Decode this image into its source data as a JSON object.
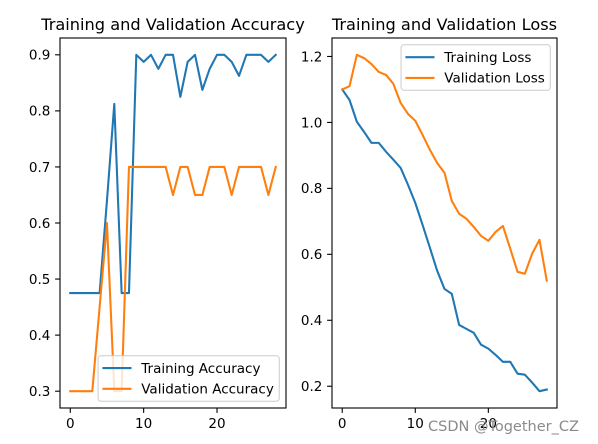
{
  "watermark": "CSDN @Together_CZ",
  "chart_data": [
    {
      "type": "line",
      "title": "Training and Validation Accuracy",
      "x": [
        0,
        1,
        2,
        3,
        4,
        5,
        6,
        7,
        8,
        9,
        10,
        11,
        12,
        13,
        14,
        15,
        16,
        17,
        18,
        19,
        20,
        21,
        22,
        23,
        24,
        25,
        26,
        27,
        28
      ],
      "xlim": [
        -1.4,
        29.4
      ],
      "ylim": [
        0.27,
        0.93
      ],
      "x_ticks": [
        "0",
        "10",
        "20"
      ],
      "y_ticks": [
        "0.3",
        "0.4",
        "0.5",
        "0.6",
        "0.7",
        "0.8",
        "0.9"
      ],
      "grid": false,
      "legend": "lower right",
      "series": [
        {
          "name": "Training Accuracy",
          "color": "#1f77b4",
          "values": [
            0.475,
            0.475,
            0.475,
            0.475,
            0.475,
            0.64,
            0.8125,
            0.475,
            0.475,
            0.9,
            0.8875,
            0.9,
            0.875,
            0.9,
            0.9,
            0.825,
            0.8875,
            0.9,
            0.8375,
            0.875,
            0.9,
            0.9,
            0.8875,
            0.8625,
            0.9,
            0.9,
            0.9,
            0.8875,
            0.9
          ]
        },
        {
          "name": "Validation Accuracy",
          "color": "#ff7f0e",
          "values": [
            0.3,
            0.3,
            0.3,
            0.3,
            0.45,
            0.6,
            0.3,
            0.3,
            0.7,
            0.7,
            0.7,
            0.7,
            0.7,
            0.7,
            0.65,
            0.7,
            0.7,
            0.65,
            0.65,
            0.7,
            0.7,
            0.7,
            0.65,
            0.7,
            0.7,
            0.7,
            0.7,
            0.65,
            0.7
          ]
        }
      ]
    },
    {
      "type": "line",
      "title": "Training and Validation Loss",
      "x": [
        0,
        1,
        2,
        3,
        4,
        5,
        6,
        7,
        8,
        9,
        10,
        11,
        12,
        13,
        14,
        15,
        16,
        17,
        18,
        19,
        20,
        21,
        22,
        23,
        24,
        25,
        26,
        27,
        28
      ],
      "xlim": [
        -1.4,
        29.4
      ],
      "ylim": [
        0.134,
        1.256
      ],
      "x_ticks": [
        "0",
        "10",
        "20"
      ],
      "y_ticks": [
        "0.2",
        "0.4",
        "0.6",
        "0.8",
        "1.0",
        "1.2"
      ],
      "grid": false,
      "legend": "upper right",
      "series": [
        {
          "name": "Training Loss",
          "color": "#1f77b4",
          "values": [
            1.1,
            1.068,
            1.002,
            0.971,
            0.938,
            0.938,
            0.911,
            0.887,
            0.862,
            0.811,
            0.756,
            0.689,
            0.62,
            0.55,
            0.495,
            0.48,
            0.386,
            0.374,
            0.362,
            0.326,
            0.314,
            0.295,
            0.274,
            0.274,
            0.238,
            0.235,
            0.211,
            0.185,
            0.19
          ]
        },
        {
          "name": "Validation Loss",
          "color": "#ff7f0e",
          "values": [
            1.1,
            1.11,
            1.205,
            1.195,
            1.177,
            1.153,
            1.144,
            1.117,
            1.059,
            1.026,
            1.005,
            0.962,
            0.917,
            0.877,
            0.847,
            0.762,
            0.723,
            0.708,
            0.683,
            0.656,
            0.641,
            0.668,
            0.686,
            0.617,
            0.547,
            0.541,
            0.602,
            0.644,
            0.52
          ]
        }
      ]
    }
  ]
}
